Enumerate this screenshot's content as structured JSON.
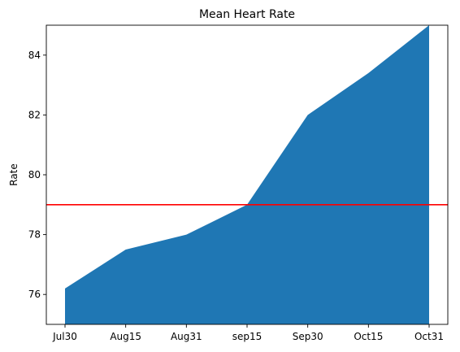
{
  "chart_data": {
    "type": "area",
    "title": "Mean Heart Rate",
    "xlabel": "",
    "ylabel": "Rate",
    "categories": [
      "Jul30",
      "Aug15",
      "Aug31",
      "sep15",
      "Sep30",
      "Oct15",
      "Oct31"
    ],
    "series": [
      {
        "values": [
          76.2,
          77.5,
          78.0,
          79.0,
          82.0,
          83.4,
          85.0
        ],
        "color": "#1f77b4"
      }
    ],
    "reference_line": {
      "axis": "y",
      "value": 79,
      "color": "#ff0000"
    },
    "ylim": [
      75,
      85
    ],
    "yticks": [
      76,
      78,
      80,
      82,
      84
    ],
    "grid": false,
    "legend": "none"
  }
}
